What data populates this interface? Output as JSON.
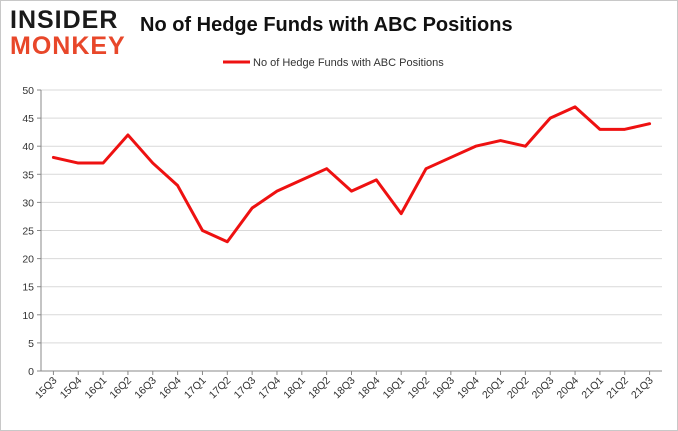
{
  "logo": {
    "line1": "INSIDER",
    "line2": "MONKEY"
  },
  "title": "No of Hedge Funds with ABC Positions",
  "chart_data": {
    "type": "line",
    "title": "No of Hedge Funds with ABC Positions",
    "xlabel": "",
    "ylabel": "",
    "categories": [
      "15Q3",
      "15Q4",
      "16Q1",
      "16Q2",
      "16Q3",
      "16Q4",
      "17Q1",
      "17Q2",
      "17Q3",
      "17Q4",
      "18Q1",
      "18Q2",
      "18Q3",
      "18Q4",
      "19Q1",
      "19Q2",
      "19Q3",
      "19Q4",
      "20Q1",
      "20Q2",
      "20Q3",
      "20Q4",
      "21Q1",
      "21Q2",
      "21Q3"
    ],
    "series": [
      {
        "name": "No of Hedge Funds with ABC Positions",
        "values": [
          38,
          37,
          37,
          42,
          37,
          33,
          25,
          23,
          29,
          32,
          34,
          36,
          32,
          34,
          28,
          36,
          38,
          40,
          41,
          40,
          45,
          47,
          43,
          43,
          44
        ]
      }
    ],
    "ylim": [
      0,
      50
    ],
    "yticks": [
      0,
      5,
      10,
      15,
      20,
      25,
      30,
      35,
      40,
      45,
      50
    ],
    "grid": true,
    "legend_position": "top-center",
    "line_color": "#ee1111"
  }
}
